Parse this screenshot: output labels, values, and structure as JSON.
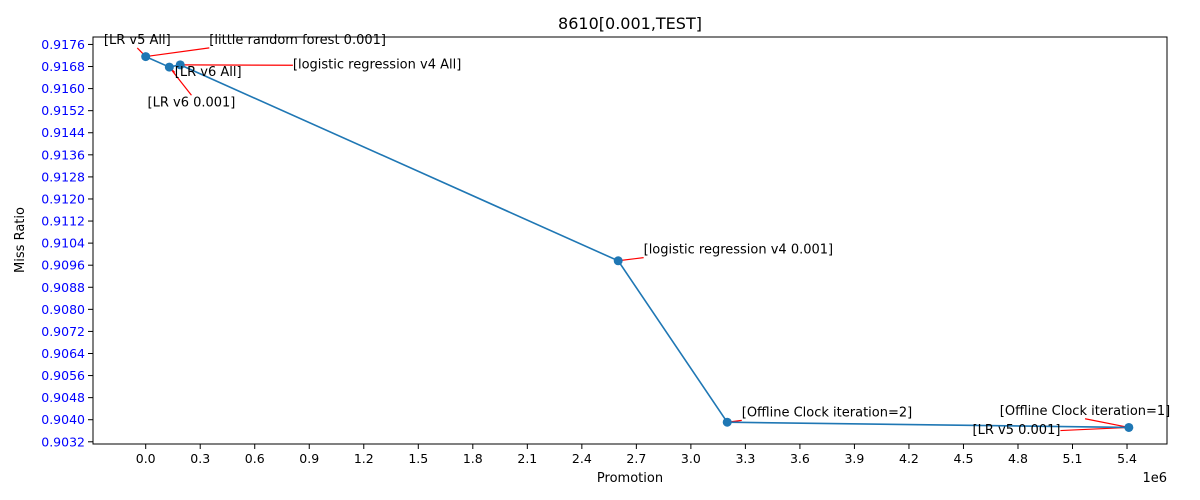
{
  "chart_data": {
    "type": "line",
    "title": "8610[0.001,TEST]",
    "xlabel": "Promotion",
    "ylabel": "Miss Ratio",
    "x_offset_text": "1e6",
    "x_scale": 1000000,
    "xlim": [
      -0.29,
      5.62
    ],
    "ylim": [
      0.90312,
      0.91787
    ],
    "x_ticks": [
      0.0,
      0.3,
      0.6,
      0.9,
      1.2,
      1.5,
      1.8,
      2.1,
      2.4,
      2.7,
      3.0,
      3.3,
      3.6,
      3.9,
      4.2,
      4.5,
      4.8,
      5.1,
      5.4
    ],
    "x_tick_labels": [
      "0.0",
      "0.3",
      "0.6",
      "0.9",
      "1.2",
      "1.5",
      "1.8",
      "2.1",
      "2.4",
      "2.7",
      "3.0",
      "3.3",
      "3.6",
      "3.9",
      "4.2",
      "4.5",
      "4.8",
      "5.1",
      "5.4"
    ],
    "y_ticks": [
      0.9032,
      0.904,
      0.9048,
      0.9056,
      0.9064,
      0.9072,
      0.908,
      0.9088,
      0.9096,
      0.9104,
      0.9112,
      0.912,
      0.9128,
      0.9136,
      0.9144,
      0.9152,
      0.916,
      0.9168,
      0.9176
    ],
    "y_tick_labels": [
      "0.9032",
      "0.9040",
      "0.9048",
      "0.9056",
      "0.9064",
      "0.9072",
      "0.9080",
      "0.9088",
      "0.9096",
      "0.9104",
      "0.9112",
      "0.9120",
      "0.9128",
      "0.9136",
      "0.9144",
      "0.9152",
      "0.9160",
      "0.9168",
      "0.9176"
    ],
    "grid": false,
    "colors": {
      "line": "#1f77b4",
      "marker": "#1f77b4",
      "ytick_label": "#0000ff",
      "annotation_arrow": "#ff0000",
      "text": "#000000"
    },
    "series": [
      {
        "x": [
          0.0,
          0.13,
          0.19,
          2.6,
          3.2,
          5.41
        ],
        "y": [
          0.91716,
          0.91678,
          0.91686,
          0.90976,
          0.90391,
          0.90372
        ]
      }
    ],
    "annotations": [
      {
        "text": "[LR v5 All]",
        "x": 0.0,
        "y": 0.91716,
        "tx": -0.23,
        "ty": 0.91762,
        "anchor": "start"
      },
      {
        "text": "[little random forest 0.001]",
        "x": 0.0,
        "y": 0.91716,
        "ty": 0.91762,
        "tx": 0.35,
        "anchor": "start"
      },
      {
        "text": "[LR v6 All]",
        "x": 0.13,
        "y": 0.91678,
        "tx": 0.16,
        "ty": 0.91646,
        "anchor": "start"
      },
      {
        "text": "[LR v6 0.001]",
        "x": 0.13,
        "y": 0.91678,
        "tx": 0.01,
        "ty": 0.91536,
        "anchor": "start"
      },
      {
        "text": "[logistic regression v4 All]",
        "x": 0.19,
        "y": 0.91686,
        "tx": 0.81,
        "ty": 0.91672,
        "anchor": "start"
      },
      {
        "text": "[logistic regression v4 0.001]",
        "x": 2.6,
        "y": 0.90976,
        "tx": 2.74,
        "ty": 0.91002,
        "anchor": "start"
      },
      {
        "text": "[Offline Clock iteration=2]",
        "x": 3.2,
        "y": 0.90391,
        "tx": 3.28,
        "ty": 0.90412,
        "anchor": "start"
      },
      {
        "text": "[Offline Clock iteration=1]",
        "x": 5.41,
        "y": 0.90372,
        "tx": 4.7,
        "ty": 0.90418,
        "anchor": "start"
      },
      {
        "text": "[LR v5 0.001]",
        "x": 5.41,
        "y": 0.90372,
        "tx": 4.55,
        "ty": 0.90348,
        "anchor": "start"
      }
    ]
  }
}
